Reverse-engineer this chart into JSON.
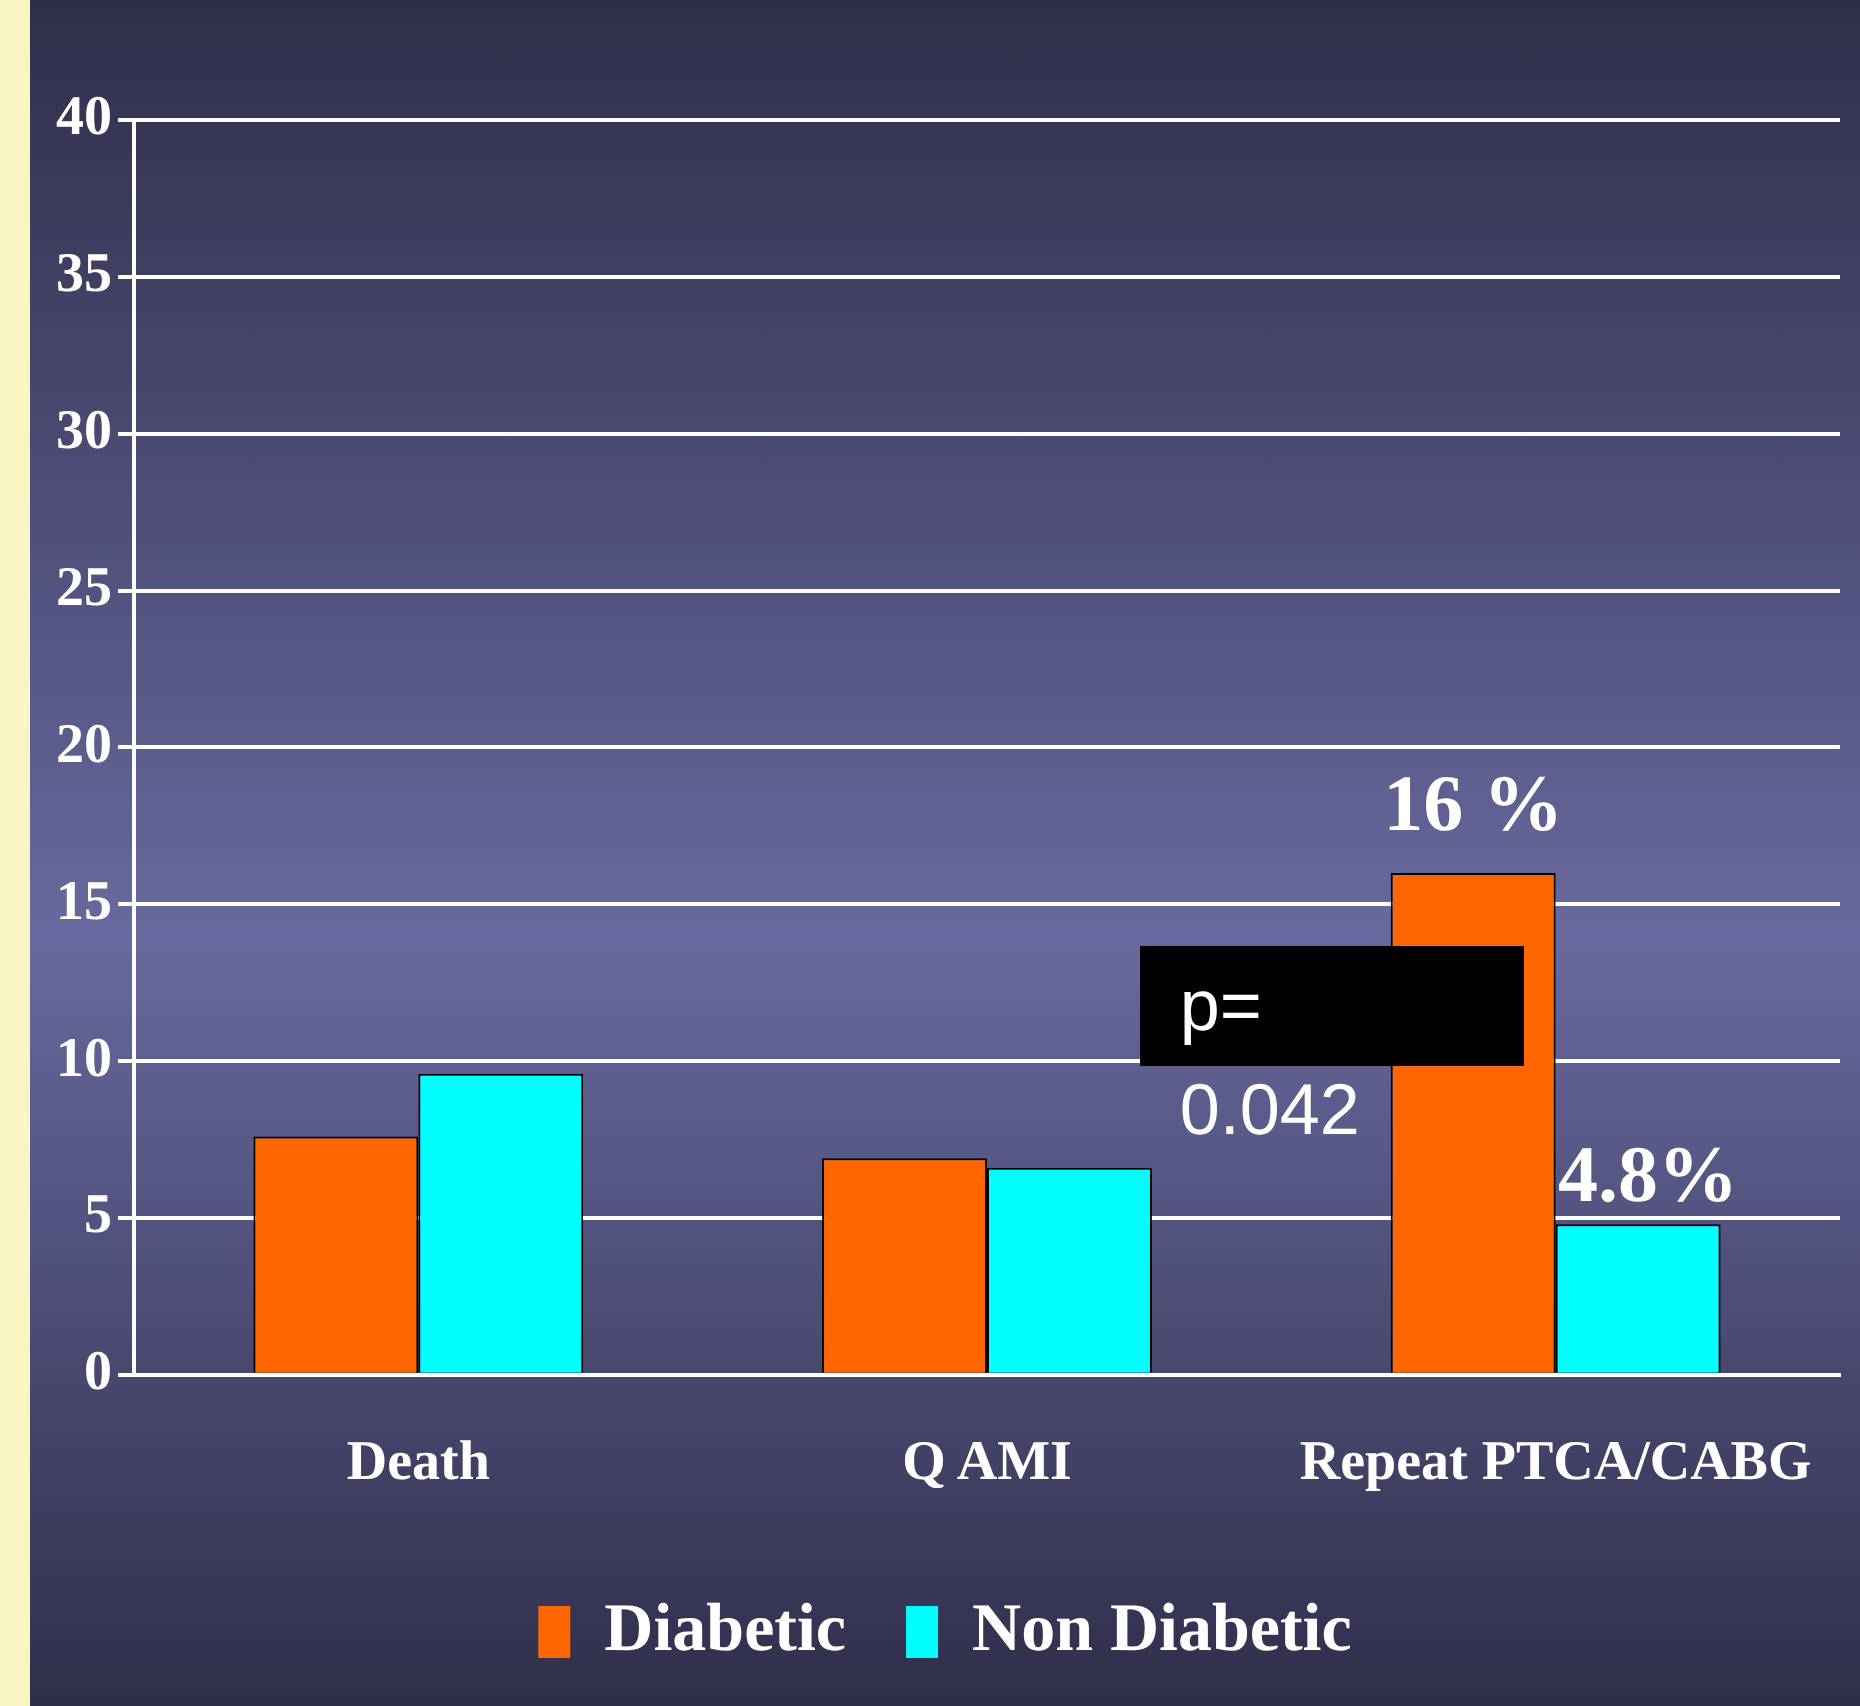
{
  "chart_data": {
    "type": "bar",
    "categories": [
      "Death",
      "Q AMI",
      "Repeat PTCA/CABG"
    ],
    "series": [
      {
        "name": "Diabetic",
        "color": "#ff6600",
        "values": [
          7.6,
          6.9,
          16
        ],
        "value_labels": [
          null,
          null,
          "16 %"
        ]
      },
      {
        "name": "Non Diabetic",
        "color": "#00ffff",
        "values": [
          9.6,
          6.6,
          4.8
        ],
        "value_labels": [
          null,
          null,
          "4.8%"
        ]
      }
    ],
    "ylim": [
      0,
      40
    ],
    "yticks": [
      0,
      5,
      10,
      15,
      20,
      25,
      30,
      35,
      40
    ],
    "grid": "y",
    "legend": "bottom",
    "annotations": [
      "p= 0.042"
    ]
  }
}
